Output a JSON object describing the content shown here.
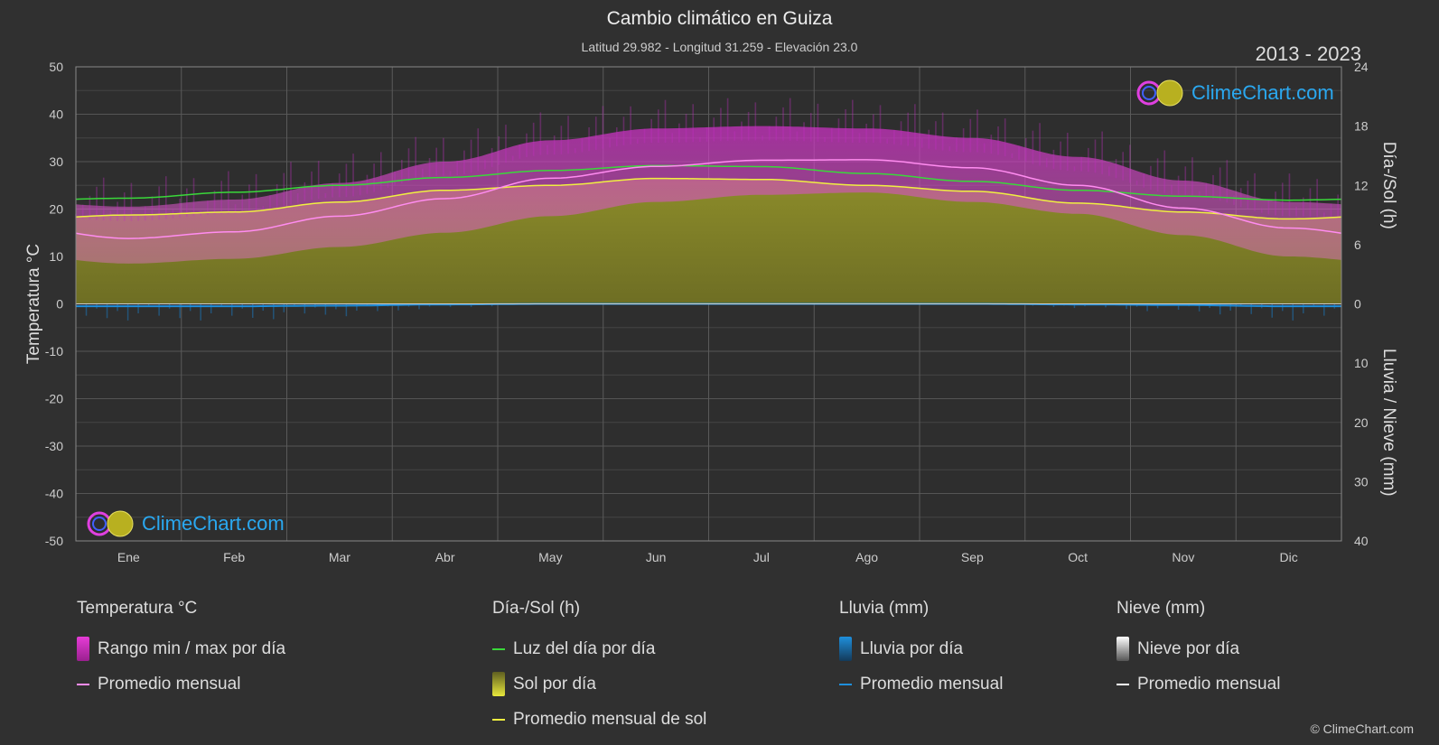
{
  "title": "Cambio climático en Guiza",
  "subtitle": "Latitud 29.982 - Longitud 31.259 - Elevación 23.0",
  "years": "2013 - 2023",
  "logo_text": "ClimeChart.com",
  "copyright": "© ClimeChart.com",
  "colors": {
    "background": "#303030",
    "temp_range": "#e63cd7",
    "temp_avg": "#ff8cf0",
    "daylight": "#3ad83a",
    "sunshine": "#9c9c28",
    "sun_avg": "#f0f040",
    "rain": "#1e8fdc",
    "snow": "#ffffff"
  },
  "legend": {
    "temp": {
      "title": "Temperatura °C",
      "range": "Rango min / max por día",
      "avg": "Promedio mensual"
    },
    "sun": {
      "title": "Día-/Sol (h)",
      "daylight": "Luz del día por día",
      "sunshine": "Sol por día",
      "avg": "Promedio mensual de sol"
    },
    "rain": {
      "title": "Lluvia (mm)",
      "daily": "Lluvia por día",
      "avg": "Promedio mensual"
    },
    "snow": {
      "title": "Nieve (mm)",
      "daily": "Nieve por día",
      "avg": "Promedio mensual"
    }
  },
  "chart_data": {
    "type": "area",
    "categories": [
      "Ene",
      "Feb",
      "Mar",
      "Abr",
      "May",
      "Jun",
      "Jul",
      "Ago",
      "Sep",
      "Oct",
      "Nov",
      "Dic"
    ],
    "left_axis": {
      "label": "Temperatura °C",
      "min": -50,
      "max": 50,
      "ticks": [
        50,
        40,
        30,
        20,
        10,
        0,
        -10,
        -20,
        -30,
        -40,
        -50
      ]
    },
    "right_axis_top": {
      "label": "Día-/Sol (h)",
      "min": 0,
      "max": 24,
      "ticks": [
        24,
        18,
        12,
        6,
        0
      ]
    },
    "right_axis_bottom": {
      "label": "Lluvia / Nieve (mm)",
      "min": 0,
      "max": 40,
      "ticks": [
        0,
        10,
        20,
        30,
        40
      ]
    },
    "grid": true,
    "series": [
      {
        "name": "Promedio mensual",
        "group": "temp",
        "axis": "temp",
        "values": [
          13.8,
          15.2,
          18.5,
          22.2,
          26.5,
          29.0,
          30.3,
          30.4,
          28.7,
          25.0,
          20.2,
          16.0
        ]
      },
      {
        "name": "Rango min / max por día (max)",
        "group": "temp",
        "axis": "temp",
        "values": [
          20.5,
          22.0,
          25.5,
          30.0,
          34.5,
          37.0,
          37.5,
          37.0,
          35.0,
          31.0,
          26.0,
          21.5
        ]
      },
      {
        "name": "Rango min / max por día (min)",
        "group": "temp",
        "axis": "temp",
        "values": [
          8.5,
          9.5,
          12.0,
          15.0,
          18.5,
          21.5,
          23.0,
          23.5,
          21.5,
          19.0,
          14.5,
          10.0
        ]
      },
      {
        "name": "Luz del día por día",
        "group": "sun",
        "axis": "hours",
        "values": [
          10.7,
          11.3,
          12.0,
          12.8,
          13.5,
          14.0,
          13.9,
          13.2,
          12.4,
          11.5,
          10.9,
          10.5
        ]
      },
      {
        "name": "Sol por día",
        "group": "sun",
        "axis": "hours",
        "values": [
          9.0,
          9.3,
          10.3,
          11.5,
          12.0,
          12.7,
          12.6,
          12.0,
          11.4,
          10.2,
          9.3,
          8.6
        ]
      },
      {
        "name": "Promedio mensual de sol",
        "group": "sun",
        "axis": "hours",
        "values": [
          9.0,
          9.3,
          10.3,
          11.5,
          12.0,
          12.7,
          12.6,
          12.0,
          11.4,
          10.2,
          9.3,
          8.6
        ]
      },
      {
        "name": "Lluvia promedio mensual",
        "group": "rain",
        "axis": "mm",
        "values": [
          0.4,
          0.4,
          0.3,
          0.1,
          0.0,
          0.0,
          0.0,
          0.0,
          0.0,
          0.1,
          0.2,
          0.4
        ]
      },
      {
        "name": "Nieve promedio mensual",
        "group": "snow",
        "axis": "mm",
        "values": [
          0,
          0,
          0,
          0,
          0,
          0,
          0,
          0,
          0,
          0,
          0,
          0
        ]
      }
    ]
  }
}
